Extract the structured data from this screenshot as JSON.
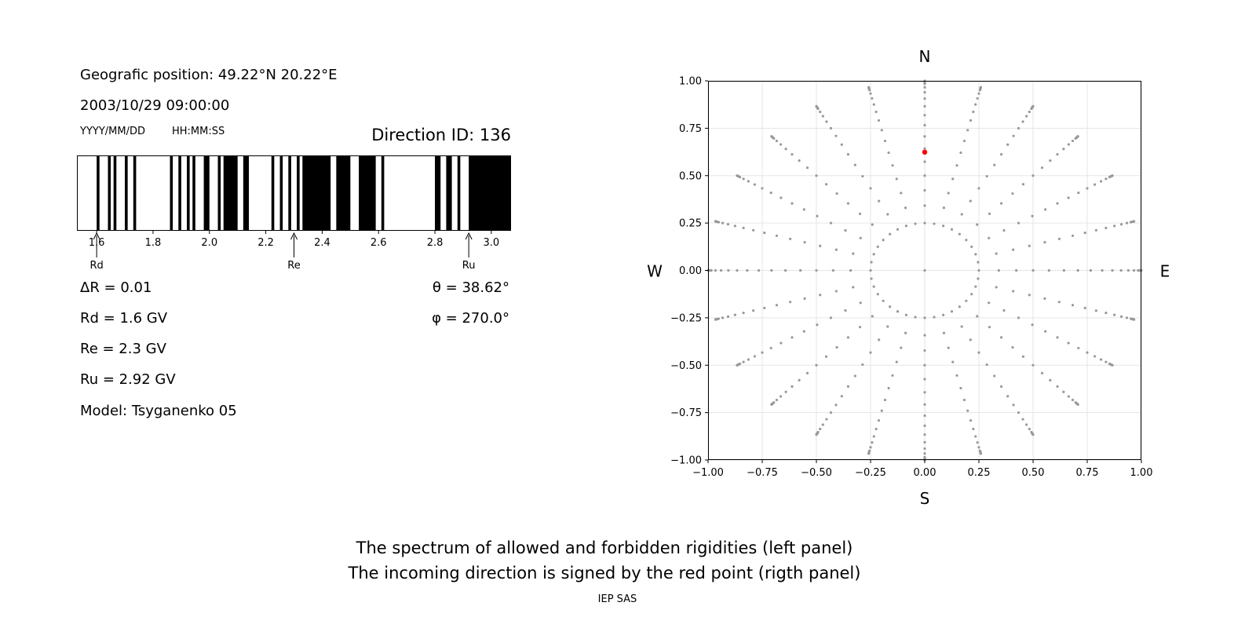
{
  "left_panel": {
    "position_text": "Geografic position: 49.22°N 20.22°E",
    "datetime_text": "2003/10/29 09:00:00",
    "date_format_label": "YYYY/MM/DD",
    "time_format_label": "HH:MM:SS",
    "direction_id_text": "Direction ID: 136",
    "delta_r_text": "ΔR = 0.01",
    "theta_text": "θ = 38.62°",
    "phi_text": "φ = 270.0°",
    "rd_text": "Rd = 1.6 GV",
    "re_text": "Re = 2.3 GV",
    "ru_text": "Ru = 2.92 GV",
    "model_text": "Model: Tsyganenko 05"
  },
  "captions": {
    "line1": "The spectrum of allowed and forbidden rigidities (left panel)",
    "line2": "The incoming direction is signed by the red point (rigth panel)",
    "institution": "IEP SAS"
  },
  "colors": {
    "forbidden": "#000000",
    "allowed": "#ffffff",
    "grid_point": "#999999",
    "direction_point": "#ff0000"
  },
  "chart_data": [
    {
      "type": "bar",
      "name": "rigidity-spectrum",
      "xlim": [
        1.53,
        3.07
      ],
      "x_ticks": [
        1.6,
        1.8,
        2.0,
        2.2,
        2.4,
        2.6,
        2.8,
        3.0
      ],
      "x_tick_labels": [
        "1.6",
        "1.8",
        "2.0",
        "2.2",
        "2.4",
        "2.6",
        "2.8",
        "3.0"
      ],
      "forbidden_intervals": [
        [
          1.6,
          1.61
        ],
        [
          1.64,
          1.65
        ],
        [
          1.66,
          1.67
        ],
        [
          1.7,
          1.71
        ],
        [
          1.73,
          1.74
        ],
        [
          1.86,
          1.87
        ],
        [
          1.89,
          1.9
        ],
        [
          1.92,
          1.93
        ],
        [
          1.94,
          1.95
        ],
        [
          1.98,
          2.0
        ],
        [
          2.03,
          2.04
        ],
        [
          2.05,
          2.1
        ],
        [
          2.12,
          2.14
        ],
        [
          2.22,
          2.23
        ],
        [
          2.25,
          2.26
        ],
        [
          2.28,
          2.29
        ],
        [
          2.31,
          2.32
        ],
        [
          2.33,
          2.43
        ],
        [
          2.45,
          2.5
        ],
        [
          2.53,
          2.59
        ],
        [
          2.61,
          2.62
        ],
        [
          2.8,
          2.82
        ],
        [
          2.84,
          2.86
        ],
        [
          2.88,
          2.89
        ],
        [
          2.92,
          3.07
        ]
      ],
      "markers": [
        {
          "label": "Rd",
          "value": 1.6
        },
        {
          "label": "Re",
          "value": 2.3
        },
        {
          "label": "Ru",
          "value": 2.92
        }
      ]
    },
    {
      "type": "scatter",
      "name": "asymptotic-directions",
      "xlim": [
        -1.0,
        1.0
      ],
      "ylim": [
        -1.0,
        1.0
      ],
      "x_ticks": [
        -1.0,
        -0.75,
        -0.5,
        -0.25,
        0.0,
        0.25,
        0.5,
        0.75,
        1.0
      ],
      "x_tick_labels": [
        "−1.00",
        "−0.75",
        "−0.50",
        "−0.25",
        "0.00",
        "0.25",
        "0.50",
        "0.75",
        "1.00"
      ],
      "y_ticks": [
        1.0,
        0.75,
        0.5,
        0.25,
        0.0,
        -0.25,
        -0.5,
        -0.75,
        -1.0
      ],
      "y_tick_labels": [
        "1.00",
        "0.75",
        "0.50",
        "0.25",
        "0.00",
        "−0.25",
        "−0.50",
        "−0.75",
        "−1.00"
      ],
      "grid": true,
      "compass": {
        "north": "N",
        "south": "S",
        "west": "W",
        "east": "E"
      },
      "grid_points": {
        "center": [
          0,
          0
        ],
        "radial_theta_deg": [
          15,
          20,
          25,
          30,
          35,
          40,
          45,
          50,
          55,
          60,
          65,
          70,
          75,
          80,
          82,
          84,
          86,
          88,
          90
        ],
        "radial_phi_step_deg": 15,
        "inner_ring_theta_deg": 15,
        "inner_ring_phi_step_deg": 10
      },
      "highlight_point": {
        "x": 0.0,
        "y": 0.624,
        "theta_deg": 38.62,
        "phi_deg": 270.0
      }
    }
  ]
}
